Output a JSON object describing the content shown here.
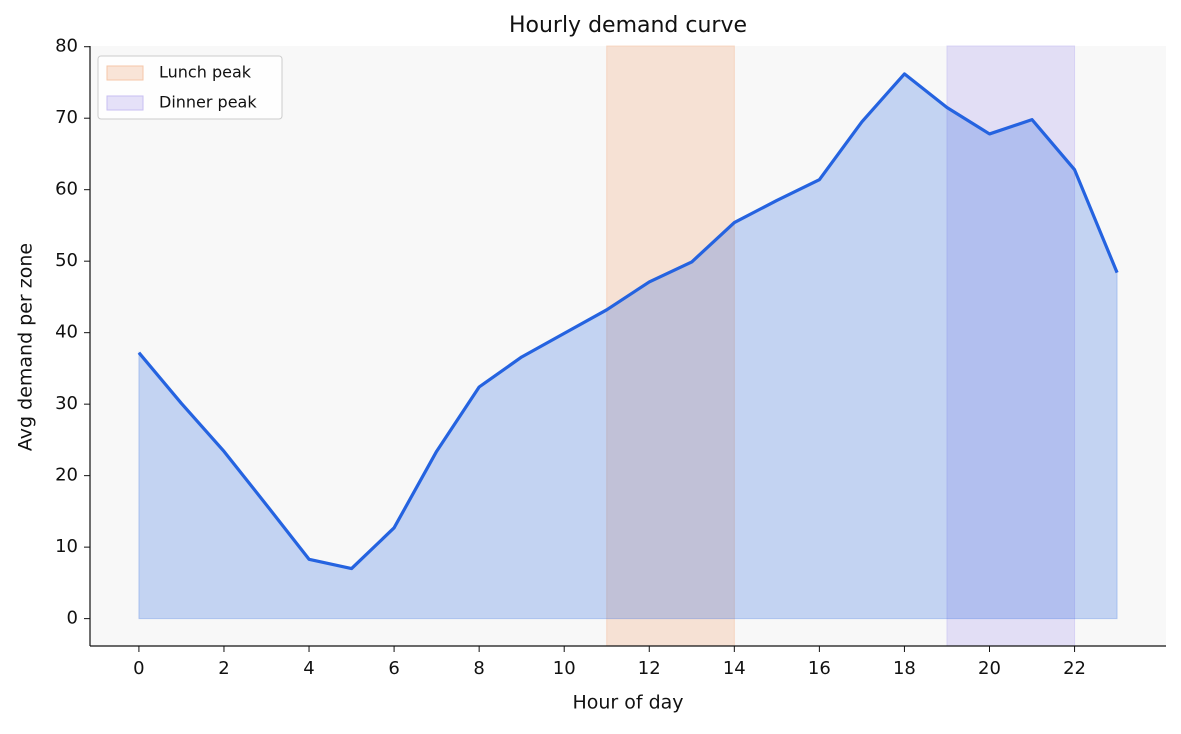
{
  "chart_data": {
    "type": "area",
    "title": "Hourly demand curve",
    "x_label": "Hour of day",
    "y_label": "Avg demand per zone",
    "x": [
      0,
      1,
      2,
      3,
      4,
      5,
      6,
      7,
      8,
      9,
      10,
      11,
      12,
      13,
      14,
      15,
      16,
      17,
      18,
      19,
      20,
      21,
      22,
      23
    ],
    "series": [
      {
        "color": "#2563e0",
        "values": [
          37.2,
          30.1,
          23.4,
          15.9,
          8.3,
          7.0,
          12.7,
          23.4,
          32.4,
          36.6,
          39.9,
          43.2,
          47.1,
          49.9,
          55.4,
          58.5,
          61.4,
          69.5,
          76.2,
          71.5,
          67.8,
          69.8,
          62.8,
          48.4
        ]
      }
    ],
    "spans": [
      {
        "name": "Lunch peak",
        "start": 11,
        "end": 14,
        "color": "#f5c6a8"
      },
      {
        "name": "Dinner peak",
        "start": 19,
        "end": 22,
        "color": "#c8bff2"
      }
    ],
    "xlim": [
      -1.15,
      24.15
    ],
    "ylim": [
      -3.83,
      80.1
    ],
    "xticks": [
      0,
      2,
      4,
      6,
      8,
      10,
      12,
      14,
      16,
      18,
      20,
      22
    ],
    "yticks": [
      0,
      10,
      20,
      30,
      40,
      50,
      60,
      70,
      80
    ],
    "legend": "upper left",
    "background": "#f8f8f8"
  }
}
